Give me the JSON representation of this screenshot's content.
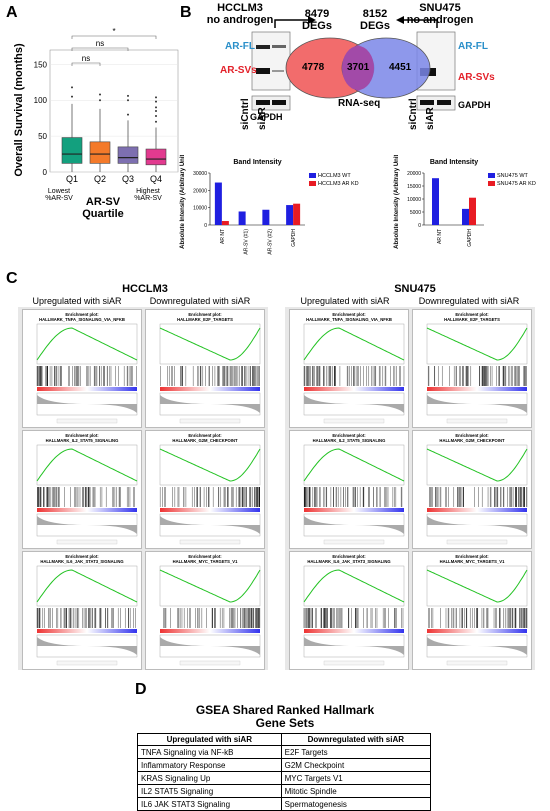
{
  "panels": {
    "a": "A",
    "b": "B",
    "c": "C",
    "d": "D"
  },
  "panel_a": {
    "ylabel": "Overall Survival (months)",
    "ns1": "ns",
    "ns2": "ns",
    "star": "*",
    "ticks": [
      "0",
      "50",
      "100",
      "150"
    ],
    "quartiles": [
      "Q1",
      "Q2",
      "Q3",
      "Q4"
    ],
    "lowest_line1": "Lowest",
    "lowest_line2": "%AR-SV",
    "highest_line1": "Highest",
    "highest_line2": "%AR-SV",
    "xtitle_line1": "AR-SV",
    "xtitle_line2": "Quartile",
    "colors": [
      "#13a07e",
      "#f47a2a",
      "#7d6fb0",
      "#e23a8f"
    ]
  },
  "panel_b": {
    "hcclm3_title1": "HCCLM3",
    "hcclm3_title2": "no androgen",
    "snu475_title1": "SNU475",
    "snu475_title2": "no androgen",
    "degs_left_n": "8479",
    "degs_left": "DEGs",
    "degs_right_n": "8152",
    "degs_right": "DEGs",
    "venn_left": "4778",
    "venn_mid": "3701",
    "venn_right": "4451",
    "rnaseq": "RNA-seq",
    "ar_fl": "AR-FL",
    "ar_svs": "AR-SVs",
    "gapdh": "GAPDH",
    "sictrl": "siCntrl",
    "siar": "siAR",
    "ar_fl_color": "#2a8fc9",
    "ar_svs_color": "#e3212a"
  },
  "chart_data": [
    {
      "type": "bar",
      "title": "Band Intensity",
      "ylabel": "Absolute Intensity (Arbitrary Units)",
      "categories": [
        "AR NT",
        "AR-SV (#1)",
        "AR-SV (#2)",
        "GAPDH"
      ],
      "series": [
        {
          "name": "HCCLM3 WT",
          "values": [
            24500,
            7800,
            8800,
            11500
          ]
        },
        {
          "name": "HCCLM3 AR KD",
          "values": [
            2300,
            0,
            0,
            12300
          ]
        }
      ],
      "ylim": [
        0,
        30000
      ],
      "yticks": [
        "0",
        "10000",
        "20000",
        "30000"
      ],
      "colors": [
        "#1f1fe0",
        "#e81b23"
      ],
      "legend": "right"
    },
    {
      "type": "bar",
      "title": "Band Intensity",
      "ylabel": "Absolute Intensity (Arbitrary Units)",
      "categories": [
        "AR NT",
        "GAPDH"
      ],
      "series": [
        {
          "name": "SNU475 WT",
          "values": [
            18000,
            6200
          ]
        },
        {
          "name": "SNU475 AR KD",
          "values": [
            0,
            10500
          ]
        }
      ],
      "ylim": [
        0,
        20000
      ],
      "yticks": [
        "0",
        "5000",
        "10000",
        "15000",
        "20000"
      ],
      "colors": [
        "#1f1fe0",
        "#e81b23"
      ],
      "legend": "right"
    }
  ],
  "panel_c": {
    "hcclm3": "HCCLM3",
    "snu475": "SNU475",
    "up": "Upregulated with siAR",
    "down": "Downregulated with siAR",
    "hcclm3_up": [
      "HALLMARK_TNFA_SIGNALING_VIA_NFKB",
      "HALLMARK_IL2_STAT5_SIGNALING",
      "HALLMARK_IL6_JAK_STAT3_SIGNALING"
    ],
    "hcclm3_down": [
      "HALLMARK_E2F_TARGETS",
      "HALLMARK_G2M_CHECKPOINT",
      "HALLMARK_MYC_TARGETS_V1"
    ],
    "snu475_up": [
      "HALLMARK_TNFA_SIGNALING_VIA_NFKB",
      "HALLMARK_IL2_STAT5_SIGNALING",
      "HALLMARK_IL6_JAK_STAT3_SIGNALING"
    ],
    "snu475_down": [
      "HALLMARK_E2F_TARGETS",
      "HALLMARK_G2M_CHECKPOINT",
      "HALLMARK_MYC_TARGETS_V1"
    ],
    "enrich_prefix": "Enrichment plot:"
  },
  "panel_d": {
    "title1": "GSEA Shared Ranked Hallmark",
    "title2": "Gene Sets",
    "header_up": "Upregulated with siAR",
    "header_down": "Downregulated with siAR",
    "rows": [
      [
        "TNFA Signaling via NF-kB",
        "E2F Targets"
      ],
      [
        "Inflammatory Response",
        "G2M Checkpoint"
      ],
      [
        "KRAS Signaling Up",
        "MYC Targets V1"
      ],
      [
        "IL2 STAT5 Signaling",
        "Mitotic Spindle"
      ],
      [
        "IL6 JAK STAT3 Signaling",
        "Spermatogenesis"
      ]
    ]
  }
}
